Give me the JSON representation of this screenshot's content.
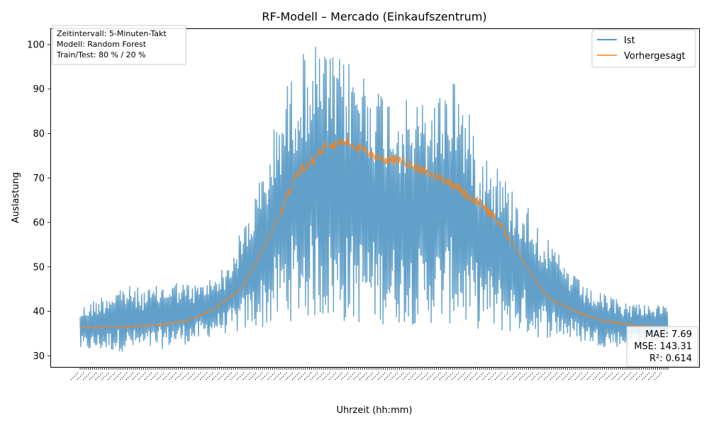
{
  "chart_data": {
    "type": "line",
    "title": "RF-Modell – Mercado (Einkaufszentrum)",
    "xlabel": "Uhrzeit (hh:mm)",
    "ylabel": "Auslastung",
    "ylim": [
      27.5,
      103.5
    ],
    "yticks": [
      30,
      40,
      50,
      60,
      70,
      80,
      90,
      100
    ],
    "grid": false,
    "legend_position": "top-right",
    "x_tick_labels_note": "dense overlapping hh:mm labels, illegible",
    "info_box": {
      "position": "top-left",
      "lines": [
        "Zeitintervall: 5-Minuten-Takt",
        "Modell: Random Forest",
        "Train/Test: 80 % / 20 %"
      ]
    },
    "metrics_box": {
      "position": "bottom-right",
      "lines": [
        "MAE: 7.69",
        "MSE: 143.31",
        "R²: 0.614"
      ]
    },
    "series": [
      {
        "name": "Ist",
        "color": "#1f77b4",
        "envelope_index": [
          0,
          60,
          100,
          140,
          170,
          190,
          205,
          220,
          240,
          260,
          280,
          300,
          320,
          340,
          360,
          380,
          400,
          420,
          440,
          460,
          480,
          500,
          520,
          540,
          560,
          580,
          600,
          620,
          640,
          660,
          680,
          700,
          720,
          740,
          760,
          780,
          800,
          820,
          840,
          880
        ],
        "envelope_high": [
          41,
          46,
          45,
          47,
          46,
          47,
          49,
          50,
          58,
          66,
          75,
          88,
          95,
          100,
          100,
          97,
          97,
          96,
          92,
          90,
          88,
          87,
          88,
          90,
          95,
          85,
          78,
          75,
          69,
          66,
          62,
          56,
          52,
          48,
          45,
          44,
          43,
          42,
          42,
          41
        ],
        "envelope_low": [
          31,
          31,
          31,
          32,
          33,
          34,
          35,
          35,
          35,
          36,
          36,
          37,
          38,
          38,
          38,
          37,
          37,
          37,
          37,
          37,
          37,
          37,
          37,
          37,
          37,
          36,
          36,
          35,
          35,
          35,
          34,
          34,
          34,
          33,
          33,
          32,
          32,
          32,
          33,
          33
        ]
      },
      {
        "name": "Vorhergesagt",
        "color": "#ff7f0e",
        "x": [
          0,
          40,
          80,
          120,
          160,
          200,
          240,
          260,
          280,
          300,
          310,
          320,
          330,
          340,
          350,
          360,
          370,
          380,
          390,
          400,
          420,
          440,
          460,
          480,
          500,
          520,
          540,
          560,
          580,
          600,
          620,
          640,
          660,
          680,
          700,
          720,
          740,
          760,
          780,
          800,
          840,
          880
        ],
        "y": [
          36.3,
          36.5,
          36.6,
          37.0,
          37.8,
          40.5,
          45,
          50,
          56,
          62,
          66,
          70,
          72,
          73,
          74,
          76,
          78,
          77.5,
          78,
          78,
          76.5,
          75,
          74,
          74,
          72.5,
          71,
          70,
          68.5,
          66,
          64,
          61,
          57,
          52,
          47,
          43,
          41.5,
          40,
          39,
          38,
          37.5,
          36.6,
          36.5
        ]
      }
    ]
  }
}
